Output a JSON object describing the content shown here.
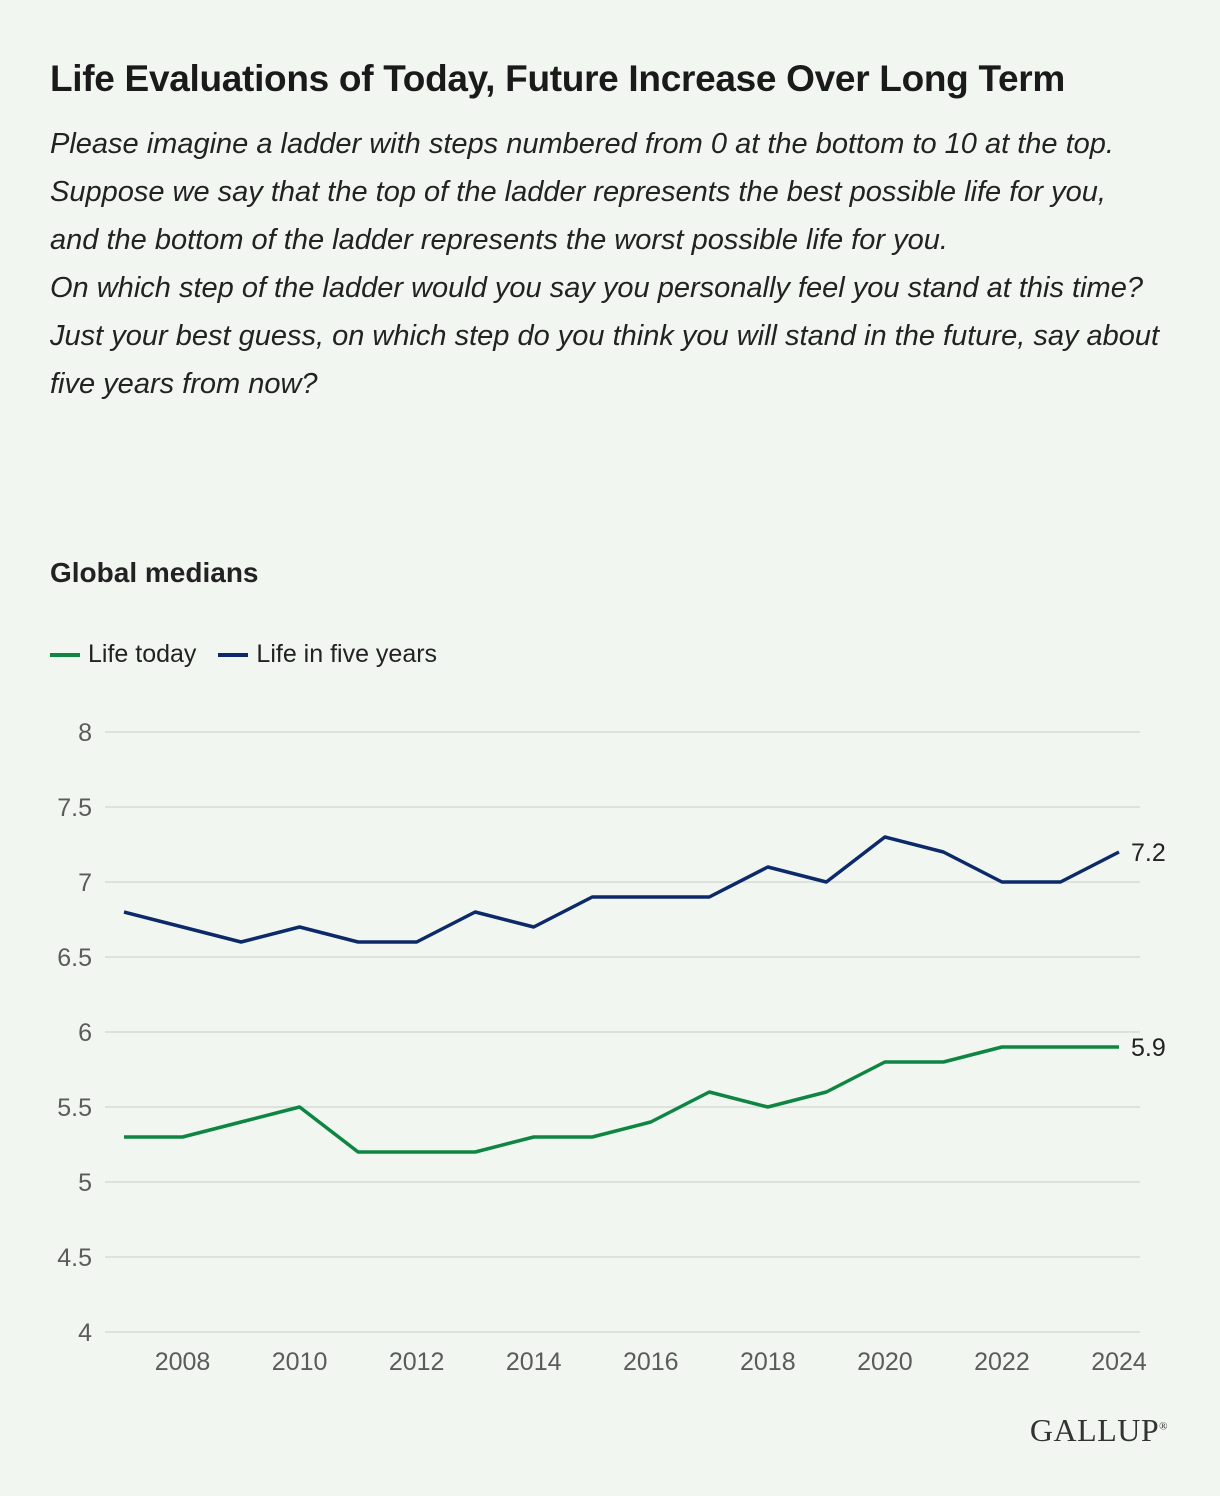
{
  "title": "Life Evaluations of Today, Future Increase Over Long Term",
  "question": [
    "Please imagine a ladder with steps numbered from 0 at the bottom to 10 at the top. Suppose we say that the top of the ladder represents the best possible life for you, and the bottom of the ladder represents the worst possible life for you.",
    "On which step of the ladder would you say you personally feel you stand at this time?",
    "Just your best guess, on which step do you think you will stand in the future, say about five years from now?"
  ],
  "subtitle": "Global medians",
  "brand": "GALLUP",
  "colors": {
    "life_today": "#0e8542",
    "life_five_years": "#0c2a6a",
    "grid": "#d7dcd6",
    "tick": "#5b5b5b"
  },
  "chart_data": {
    "type": "line",
    "x": [
      2007,
      2008,
      2009,
      2010,
      2011,
      2012,
      2013,
      2014,
      2015,
      2016,
      2017,
      2018,
      2019,
      2020,
      2021,
      2022,
      2023,
      2024
    ],
    "series": [
      {
        "name": "Life today",
        "color": "#0e8542",
        "end_label": "5.9",
        "values": [
          5.3,
          5.3,
          5.4,
          5.5,
          5.2,
          5.2,
          5.2,
          5.3,
          5.3,
          5.4,
          5.6,
          5.5,
          5.6,
          5.8,
          5.8,
          5.9,
          5.9,
          5.9
        ]
      },
      {
        "name": "Life in five years",
        "color": "#0c2a6a",
        "end_label": "7.2",
        "values": [
          6.8,
          6.7,
          6.6,
          6.7,
          6.6,
          6.6,
          6.8,
          6.7,
          6.9,
          6.9,
          6.9,
          7.1,
          7.0,
          7.3,
          7.2,
          7.0,
          7.0,
          7.2
        ]
      }
    ],
    "ylim": [
      4,
      8
    ],
    "yticks": [
      4,
      4.5,
      5,
      5.5,
      6,
      6.5,
      7,
      7.5,
      8
    ],
    "ytick_labels": [
      "4",
      "4.5",
      "5",
      "5.5",
      "6",
      "6.5",
      "7",
      "7.5",
      "8"
    ],
    "xticks": [
      2008,
      2010,
      2012,
      2014,
      2016,
      2018,
      2020,
      2022,
      2024
    ],
    "xtick_labels": [
      "2008",
      "2010",
      "2012",
      "2014",
      "2016",
      "2018",
      "2020",
      "2022",
      "2024"
    ],
    "grid": "horizontal",
    "legend": "top-left"
  }
}
